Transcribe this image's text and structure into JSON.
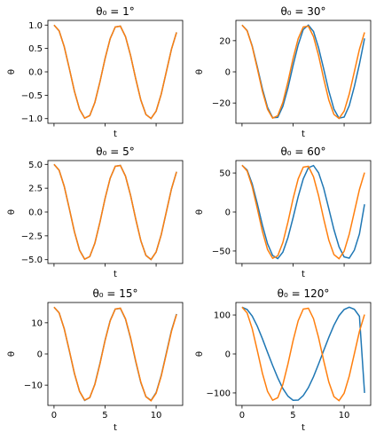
{
  "chart_data": [
    {
      "type": "line",
      "title": "θ₀ = 1°",
      "theta0_deg": 1,
      "xlabel": "t",
      "ylabel": "θ",
      "xlim": [
        -0.6,
        12.6
      ],
      "ylim": [
        -1.1,
        1.1
      ],
      "yticks": [
        1.0,
        0.5,
        0.0,
        -0.5,
        -1.0
      ],
      "ytick_labels": [
        "1.0",
        "0.5",
        "0.0",
        "−0.5",
        "−1.0"
      ],
      "xticks": [
        0,
        5,
        10
      ],
      "xtick_labels": [],
      "series": [
        {
          "color": "#1f77b4",
          "x": [
            0,
            0.5,
            1,
            1.5,
            2,
            2.5,
            3,
            3.5,
            4,
            4.5,
            5,
            5.5,
            6,
            6.5,
            7,
            7.5,
            8,
            8.5,
            9,
            9.5,
            10,
            10.5,
            11,
            11.5,
            12
          ],
          "values": [
            1.0,
            0.878,
            0.54,
            0.071,
            -0.416,
            -0.801,
            -0.99,
            -0.936,
            -0.654,
            -0.211,
            0.284,
            0.709,
            0.96,
            0.977,
            0.754,
            0.347,
            -0.146,
            -0.602,
            -0.911,
            -0.997,
            -0.839,
            -0.476,
            0.004,
            0.483,
            0.844
          ]
        },
        {
          "color": "#ff7f0e",
          "x": [
            0,
            0.5,
            1,
            1.5,
            2,
            2.5,
            3,
            3.5,
            4,
            4.5,
            5,
            5.5,
            6,
            6.5,
            7,
            7.5,
            8,
            8.5,
            9,
            9.5,
            10,
            10.5,
            11,
            11.5,
            12
          ],
          "values": [
            1.0,
            0.878,
            0.54,
            0.071,
            -0.416,
            -0.801,
            -0.99,
            -0.936,
            -0.654,
            -0.211,
            0.284,
            0.709,
            0.96,
            0.977,
            0.754,
            0.347,
            -0.146,
            -0.602,
            -0.911,
            -0.997,
            -0.839,
            -0.475,
            0.004,
            0.483,
            0.844
          ]
        }
      ]
    },
    {
      "type": "line",
      "title": "θ₀ = 30°",
      "theta0_deg": 30,
      "xlabel": "t",
      "ylabel": "θ",
      "xlim": [
        -0.6,
        12.6
      ],
      "ylim": [
        -33,
        33
      ],
      "yticks": [
        20,
        0,
        -20
      ],
      "ytick_labels": [
        "20",
        "0",
        "−20"
      ],
      "xticks": [
        0,
        5,
        10
      ],
      "xtick_labels": [],
      "series": [
        {
          "color": "#1f77b4",
          "x": [
            0,
            0.5,
            1,
            1.5,
            2,
            2.5,
            3,
            3.5,
            4,
            4.5,
            5,
            5.5,
            6,
            6.5,
            7,
            7.5,
            8,
            8.5,
            9,
            9.5,
            10,
            10.5,
            11,
            11.5,
            12
          ],
          "values": [
            30,
            26.5,
            16.6,
            3.2,
            -11.0,
            -22.8,
            -29.4,
            -29.2,
            -22.1,
            -10.3,
            4.1,
            17.3,
            27.2,
            30.0,
            25.9,
            15.4,
            1.8,
            -12.3,
            -23.9,
            -29.7,
            -29.0,
            -21.7,
            -9.4,
            5.0,
            21.5
          ]
        },
        {
          "color": "#ff7f0e",
          "x": [
            0,
            0.5,
            1,
            1.5,
            2,
            2.5,
            3,
            3.5,
            4,
            4.5,
            5,
            5.5,
            6,
            6.5,
            7,
            7.5,
            8,
            8.5,
            9,
            9.5,
            10,
            10.5,
            11,
            11.5,
            12
          ],
          "values": [
            30,
            26.3,
            16.2,
            2.1,
            -12.5,
            -24.0,
            -29.7,
            -28.1,
            -19.6,
            -6.3,
            8.5,
            21.3,
            28.8,
            29.3,
            22.6,
            10.4,
            -4.4,
            -18.1,
            -27.3,
            -29.9,
            -25.2,
            -14.3,
            0.1,
            14.5,
            25.3
          ]
        }
      ]
    },
    {
      "type": "line",
      "title": "θ₀ = 5°",
      "theta0_deg": 5,
      "xlabel": "t",
      "ylabel": "θ",
      "xlim": [
        -0.6,
        12.6
      ],
      "ylim": [
        -5.4,
        5.4
      ],
      "yticks": [
        5.0,
        2.5,
        0.0,
        -2.5,
        -5.0
      ],
      "ytick_labels": [
        "5.0",
        "2.5",
        "0.0",
        "−2.5",
        "−5.0"
      ],
      "xticks": [
        0,
        5,
        10
      ],
      "xtick_labels": [],
      "series": [
        {
          "color": "#1f77b4",
          "x": [
            0,
            0.5,
            1,
            1.5,
            2,
            2.5,
            3,
            3.5,
            4,
            4.5,
            5,
            5.5,
            6,
            6.5,
            7,
            7.5,
            8,
            8.5,
            9,
            9.5,
            10,
            10.5,
            11,
            11.5,
            12
          ],
          "values": [
            5.0,
            4.39,
            2.7,
            0.35,
            -2.08,
            -4.0,
            -4.95,
            -4.68,
            -3.27,
            -1.06,
            1.42,
            3.54,
            4.8,
            4.89,
            3.77,
            1.74,
            -0.73,
            -3.01,
            -4.55,
            -4.99,
            -4.19,
            -2.38,
            0.02,
            2.41,
            4.22
          ]
        },
        {
          "color": "#ff7f0e",
          "x": [
            0,
            0.5,
            1,
            1.5,
            2,
            2.5,
            3,
            3.5,
            4,
            4.5,
            5,
            5.5,
            6,
            6.5,
            7,
            7.5,
            8,
            8.5,
            9,
            9.5,
            10,
            10.5,
            11,
            11.5,
            12
          ],
          "values": [
            5.0,
            4.39,
            2.7,
            0.35,
            -2.08,
            -4.01,
            -4.95,
            -4.68,
            -3.27,
            -1.05,
            1.42,
            3.55,
            4.8,
            4.88,
            3.77,
            1.73,
            -0.73,
            -3.01,
            -4.56,
            -4.98,
            -4.2,
            -2.38,
            0.02,
            2.42,
            4.22
          ]
        }
      ]
    },
    {
      "type": "line",
      "title": "θ₀ = 60°",
      "theta0_deg": 60,
      "xlabel": "t",
      "ylabel": "θ",
      "xlim": [
        -0.6,
        12.6
      ],
      "ylim": [
        -66,
        66
      ],
      "yticks": [
        50,
        0,
        -50
      ],
      "ytick_labels": [
        "50",
        "0",
        "−50"
      ],
      "xticks": [
        0,
        5,
        10
      ],
      "xtick_labels": [],
      "series": [
        {
          "color": "#1f77b4",
          "x": [
            0,
            0.5,
            1,
            1.5,
            2,
            2.5,
            3,
            3.5,
            4,
            4.5,
            5,
            5.5,
            6,
            6.5,
            7,
            7.5,
            8,
            8.5,
            9,
            9.5,
            10,
            10.5,
            11,
            11.5,
            12
          ],
          "values": [
            60,
            53.9,
            36.0,
            10.6,
            -17.0,
            -40.7,
            -55.8,
            -59.8,
            -51.5,
            -32.7,
            -7.4,
            19.7,
            42.6,
            56.8,
            59.6,
            50.3,
            30.5,
            4.2,
            -22.5,
            -44.6,
            -57.6,
            -59.2,
            -48.9,
            -28.1,
            10.0
          ]
        },
        {
          "color": "#ff7f0e",
          "x": [
            0,
            0.5,
            1,
            1.5,
            2,
            2.5,
            3,
            3.5,
            4,
            4.5,
            5,
            5.5,
            6,
            6.5,
            7,
            7.5,
            8,
            8.5,
            9,
            9.5,
            10,
            10.5,
            11,
            11.5,
            12
          ],
          "values": [
            60,
            52.7,
            32.4,
            4.3,
            -25.0,
            -48.1,
            -59.4,
            -56.2,
            -39.2,
            -12.7,
            17.0,
            42.5,
            57.6,
            58.6,
            45.2,
            20.8,
            -8.8,
            -36.1,
            -54.6,
            -59.9,
            -50.3,
            -28.5,
            0.2,
            28.9,
            50.6
          ]
        }
      ]
    },
    {
      "type": "line",
      "title": "θ₀ = 15°",
      "theta0_deg": 15,
      "xlabel": "t",
      "ylabel": "θ",
      "xlim": [
        -0.6,
        12.6
      ],
      "ylim": [
        -16.5,
        16.5
      ],
      "yticks": [
        10,
        0,
        -10
      ],
      "ytick_labels": [
        "10",
        "0",
        "−10"
      ],
      "xticks": [
        0,
        5,
        10
      ],
      "xtick_labels": [
        "0",
        "5",
        "10"
      ],
      "series": [
        {
          "color": "#1f77b4",
          "x": [
            0,
            0.5,
            1,
            1.5,
            2,
            2.5,
            3,
            3.5,
            4,
            4.5,
            5,
            5.5,
            6,
            6.5,
            7,
            7.5,
            8,
            8.5,
            9,
            9.5,
            10,
            10.5,
            11,
            11.5,
            12
          ],
          "values": [
            15,
            13.2,
            8.1,
            1.0,
            -6.3,
            -12.0,
            -14.9,
            -14.0,
            -9.7,
            -3.0,
            4.4,
            10.7,
            14.4,
            14.6,
            11.2,
            5.0,
            -2.4,
            -9.2,
            -13.7,
            -14.9,
            -12.4,
            -6.9,
            0.3,
            7.5,
            12.8
          ]
        },
        {
          "color": "#ff7f0e",
          "x": [
            0,
            0.5,
            1,
            1.5,
            2,
            2.5,
            3,
            3.5,
            4,
            4.5,
            5,
            5.5,
            6,
            6.5,
            7,
            7.5,
            8,
            8.5,
            9,
            9.5,
            10,
            10.5,
            11,
            11.5,
            12
          ],
          "values": [
            15,
            13.2,
            8.1,
            1.1,
            -6.2,
            -12.0,
            -14.8,
            -14.0,
            -9.8,
            -3.2,
            4.3,
            10.6,
            14.4,
            14.7,
            11.3,
            5.2,
            -2.2,
            -9.0,
            -13.7,
            -15.0,
            -12.6,
            -7.1,
            0.0,
            7.2,
            12.7
          ]
        }
      ]
    },
    {
      "type": "line",
      "title": "θ₀ = 120°",
      "theta0_deg": 120,
      "xlabel": "t",
      "ylabel": "θ",
      "xlim": [
        -0.6,
        12.6
      ],
      "ylim": [
        -132,
        132
      ],
      "yticks": [
        100,
        0,
        -100
      ],
      "ytick_labels": [
        "100",
        "0",
        "−100"
      ],
      "xticks": [
        0,
        5,
        10
      ],
      "xtick_labels": [
        "0",
        "5",
        "10"
      ],
      "series": [
        {
          "color": "#1f77b4",
          "x": [
            0,
            0.5,
            1,
            1.5,
            2,
            2.5,
            3,
            3.5,
            4,
            4.5,
            5,
            5.5,
            6,
            6.5,
            7,
            7.5,
            8,
            8.5,
            9,
            9.5,
            10,
            10.5,
            11,
            11.5,
            12
          ],
          "values": [
            120,
            114.0,
            97.1,
            70.9,
            38.8,
            4.1,
            -29.6,
            -61.2,
            -88.7,
            -108.4,
            -118.9,
            -118.4,
            -106.7,
            -86.3,
            -58.5,
            -25.6,
            8.9,
            42.5,
            73.5,
            98.2,
            114.0,
            119.9,
            114.6,
            96.6,
            -100.0
          ]
        },
        {
          "color": "#ff7f0e",
          "x": [
            0,
            0.5,
            1,
            1.5,
            2,
            2.5,
            3,
            3.5,
            4,
            4.5,
            5,
            5.5,
            6,
            6.5,
            7,
            7.5,
            8,
            8.5,
            9,
            9.5,
            10,
            10.5,
            11,
            11.5,
            12
          ],
          "values": [
            120,
            105.3,
            64.8,
            8.5,
            -50.0,
            -96.1,
            -118.8,
            -112.3,
            -78.4,
            -25.4,
            34.0,
            85.1,
            115.2,
            117.3,
            90.5,
            41.6,
            -17.5,
            -72.1,
            -109.3,
            -119.8,
            -100.7,
            -57.1,
            0.5,
            57.9,
            101.2
          ]
        }
      ]
    }
  ]
}
